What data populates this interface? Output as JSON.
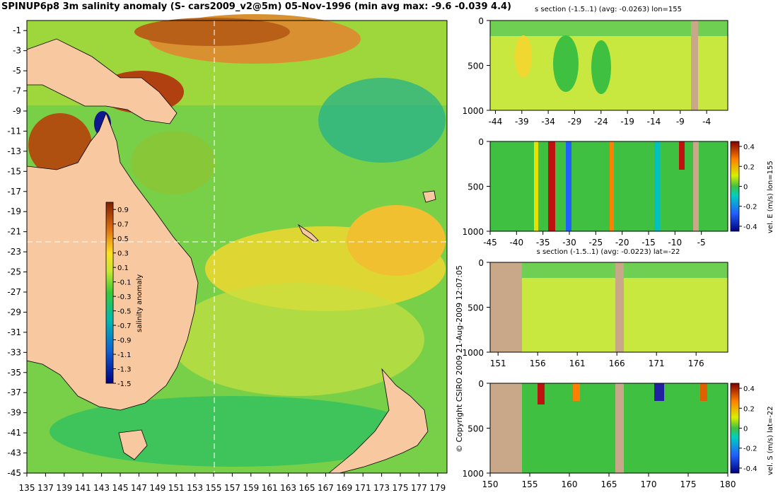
{
  "header": {
    "title": "SPINUP6p8 3m salinity anomaly (S- cars2009_v2@5m) 05-Nov-1996 (min avg max: -9.6 -0.039 4.4)"
  },
  "footer": {
    "copyright": "© Copyright CSIRO 2009   21-Aug-2009 12:07:05"
  },
  "colors": {
    "land": "#f8c8a0",
    "section_land": "#c8a888",
    "frame": "#000000",
    "crosshair": "#ffffff"
  },
  "chart_data": [
    {
      "id": "map",
      "type": "heatmap",
      "title": "",
      "xlabel": "",
      "ylabel": "",
      "x_ticks": [
        "135",
        "137",
        "139",
        "141",
        "143",
        "145",
        "147",
        "149",
        "151",
        "153",
        "155",
        "157",
        "159",
        "161",
        "163",
        "165",
        "167",
        "169",
        "171",
        "173",
        "175",
        "177",
        "179"
      ],
      "y_ticks": [
        "-1",
        "-3",
        "-5",
        "-7",
        "-9",
        "-11",
        "-13",
        "-15",
        "-17",
        "-19",
        "-21",
        "-23",
        "-25",
        "-27",
        "-29",
        "-31",
        "-33",
        "-35",
        "-37",
        "-39",
        "-41",
        "-43",
        "-45"
      ],
      "xlim": [
        135,
        180
      ],
      "ylim": [
        -45,
        0
      ],
      "crosshair": {
        "lon": 155,
        "lat": -22
      },
      "colorbar": {
        "label": "salinity anomaly",
        "ticks": [
          "0.9",
          "0.7",
          "0.5",
          "0.3",
          "0.1",
          "-0.1",
          "-0.3",
          "-0.5",
          "-0.7",
          "-0.9",
          "-1.1",
          "-1.3",
          "-1.5"
        ],
        "range": [
          -1.5,
          1.0
        ]
      }
    },
    {
      "id": "section-lon-salinity",
      "type": "heatmap",
      "title": "s section (-1.5..1) (avg: -0.0263) lon=155",
      "x_ticks": [
        "-44",
        "-39",
        "-34",
        "-29",
        "-24",
        "-19",
        "-14",
        "-9",
        "-4"
      ],
      "y_ticks": [
        "0",
        "500",
        "1000"
      ],
      "xlim": [
        -45,
        0
      ],
      "ylim": [
        1000,
        0
      ]
    },
    {
      "id": "section-lon-velocity",
      "type": "heatmap",
      "title": "",
      "x_ticks": [
        "-45",
        "-40",
        "-35",
        "-30",
        "-25",
        "-20",
        "-15",
        "-10",
        "-5"
      ],
      "y_ticks": [
        "0",
        "500",
        "1000"
      ],
      "xlim": [
        -45,
        0
      ],
      "ylim": [
        1000,
        0
      ],
      "colorbar": {
        "label": "vel. E (m/s) lon=155",
        "ticks": [
          "0.4",
          "0.2",
          "0",
          "-0.2",
          "-0.4"
        ],
        "range": [
          -0.45,
          0.45
        ]
      }
    },
    {
      "id": "section-lat-salinity",
      "type": "heatmap",
      "title": "s section (-1.5..1) (avg: -0.0223) lat=-22",
      "x_ticks": [
        "151",
        "156",
        "161",
        "166",
        "171",
        "176"
      ],
      "y_ticks": [
        "0",
        "500",
        "1000"
      ],
      "xlim": [
        150,
        180
      ],
      "ylim": [
        1000,
        0
      ]
    },
    {
      "id": "section-lat-velocity",
      "type": "heatmap",
      "title": "",
      "x_ticks": [
        "150",
        "155",
        "160",
        "165",
        "170",
        "175",
        "180"
      ],
      "y_ticks": [
        "0",
        "500",
        "1000"
      ],
      "xlim": [
        150,
        180
      ],
      "ylim": [
        1000,
        0
      ],
      "colorbar": {
        "label": "vel. S (m/s) lat=-22",
        "ticks": [
          "0.4",
          "0.2",
          "0",
          "-0.2",
          "-0.4"
        ],
        "range": [
          -0.45,
          0.45
        ]
      }
    }
  ]
}
